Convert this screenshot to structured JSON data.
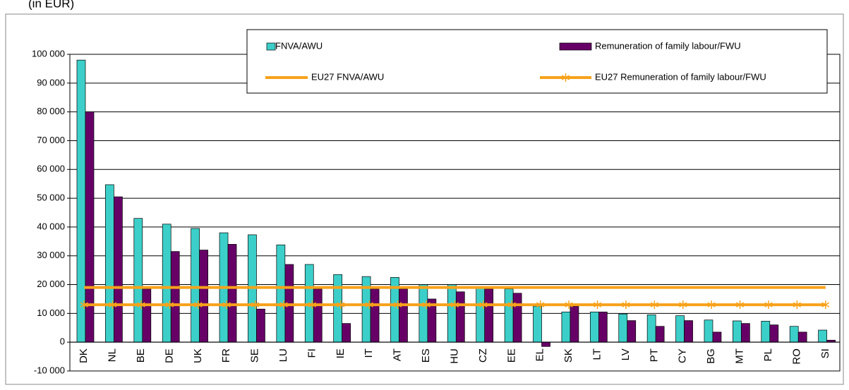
{
  "chart_data": {
    "type": "bar",
    "subtitle": "(in EUR)",
    "categories": [
      "DK",
      "NL",
      "BE",
      "DE",
      "UK",
      "FR",
      "SE",
      "LU",
      "FI",
      "IE",
      "IT",
      "AT",
      "ES",
      "HU",
      "CZ",
      "EE",
      "EL",
      "SK",
      "LT",
      "LV",
      "PT",
      "CY",
      "BG",
      "MT",
      "PL",
      "RO",
      "SI"
    ],
    "series": [
      {
        "name": "FNVA/AWU",
        "color": "#3ccfc9",
        "type": "bar",
        "values": [
          98000,
          54700,
          43000,
          41000,
          39500,
          38000,
          37300,
          33800,
          27000,
          23500,
          22800,
          22500,
          20000,
          20000,
          19000,
          18500,
          12500,
          10500,
          10500,
          9800,
          9500,
          9200,
          7700,
          7400,
          7300,
          5500,
          4200
        ]
      },
      {
        "name": "Remuneration of family labour/FWU",
        "color": "#660066",
        "type": "bar",
        "values": [
          80000,
          50500,
          18500,
          31500,
          32000,
          34000,
          11500,
          27000,
          18500,
          6500,
          18500,
          18500,
          15000,
          17500,
          18500,
          17000,
          -1500,
          12500,
          10500,
          7500,
          5500,
          7500,
          3500,
          6500,
          6000,
          3500,
          700
        ]
      },
      {
        "name": "EU27 FNVA/AWU",
        "color": "#f7a21b",
        "type": "line",
        "values": [
          19000,
          19000,
          19000,
          19000,
          19000,
          19000,
          19000,
          19000,
          19000,
          19000,
          19000,
          19000,
          19000,
          19000,
          19000,
          19000,
          19000,
          19000,
          19000,
          19000,
          19000,
          19000,
          19000,
          19000,
          19000,
          19000,
          19000
        ]
      },
      {
        "name": "EU27 Remuneration of family labour/FWU",
        "color": "#f7a21b",
        "type": "line",
        "marker": "star",
        "values": [
          13000,
          13000,
          13000,
          13000,
          13000,
          13000,
          13000,
          13000,
          13000,
          13000,
          13000,
          13000,
          13000,
          13000,
          13000,
          13000,
          13000,
          13000,
          13000,
          13000,
          13000,
          13000,
          13000,
          13000,
          13000,
          13000,
          13000
        ]
      }
    ],
    "ylim": [
      -10000,
      100000
    ],
    "yticks": [
      {
        "value": -10000,
        "label": "-10 000"
      },
      0,
      {
        "value": 10000,
        "label": "10 000"
      },
      {
        "value": 20000,
        "label": "20 000"
      },
      {
        "value": 30000,
        "label": "30 000"
      },
      {
        "value": 40000,
        "label": "40 000"
      },
      {
        "value": 50000,
        "label": "50 000"
      },
      {
        "value": 60000,
        "label": "60 000"
      },
      {
        "value": 70000,
        "label": "70 000"
      },
      {
        "value": 80000,
        "label": "80 000"
      },
      {
        "value": 90000,
        "label": "90 000"
      },
      {
        "value": 100000,
        "label": "100 000"
      }
    ],
    "grid": true
  }
}
